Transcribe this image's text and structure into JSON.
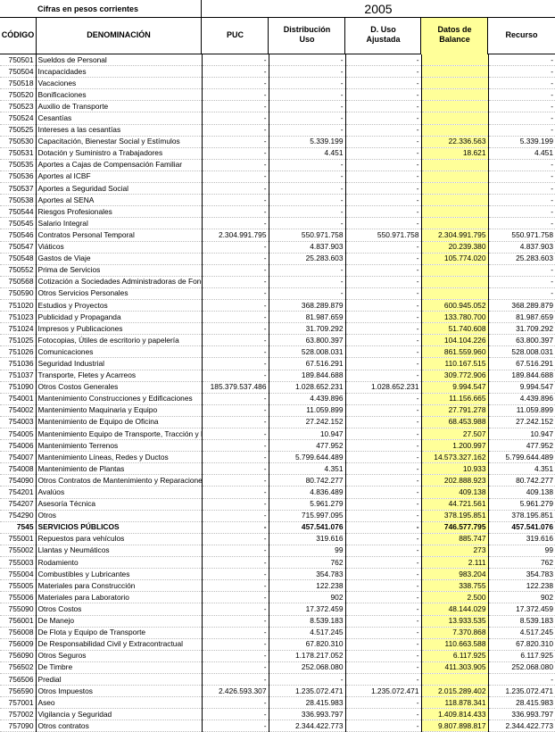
{
  "caption": "Cifras en pesos corrientes",
  "year": "2005",
  "headers": {
    "code": "CÓDIGO",
    "name": "DENOMINACIÓN",
    "puc": "PUC",
    "dist_line1": "Distribución",
    "dist_line2": "Uso",
    "duso_line1": "D. Uso",
    "duso_line2": "Ajustada",
    "datos_line1": "Datos de",
    "datos_line2": "Balance",
    "recurso": "Recurso"
  },
  "colors": {
    "highlight": "#ffff99",
    "grid": "#000000"
  },
  "rows": [
    {
      "code": "750501",
      "name": "Sueldos de Personal",
      "puc": "-",
      "dist": "-",
      "duso": "-",
      "datos": "",
      "recurso": "-"
    },
    {
      "code": "750504",
      "name": "Incapacidades",
      "puc": "-",
      "dist": "-",
      "duso": "-",
      "datos": "",
      "recurso": "-"
    },
    {
      "code": "750518",
      "name": "Vacaciones",
      "puc": "-",
      "dist": "-",
      "duso": "-",
      "datos": "",
      "recurso": "-"
    },
    {
      "code": "750520",
      "name": "Bonificaciones",
      "puc": "-",
      "dist": "-",
      "duso": "-",
      "datos": "",
      "recurso": "-"
    },
    {
      "code": "750523",
      "name": "Auxilio de Transporte",
      "puc": "-",
      "dist": "-",
      "duso": "-",
      "datos": "",
      "recurso": "-"
    },
    {
      "code": "750524",
      "name": "Cesantías",
      "puc": "-",
      "dist": "-",
      "duso": "-",
      "datos": "",
      "recurso": "-"
    },
    {
      "code": "750525",
      "name": "Intereses a las cesantías",
      "puc": "-",
      "dist": "-",
      "duso": "-",
      "datos": "",
      "recurso": "-"
    },
    {
      "code": "750530",
      "name": "Capacitación, Bienestar Social y Estímulos",
      "puc": "-",
      "dist": "5.339.199",
      "duso": "-",
      "datos": "22.336.563",
      "recurso": "5.339.199"
    },
    {
      "code": "750531",
      "name": "Dotación y Suministro a Trabajadores",
      "puc": "-",
      "dist": "4.451",
      "duso": "-",
      "datos": "18.621",
      "recurso": "4.451"
    },
    {
      "code": "750535",
      "name": "Aportes a Cajas de Compensación Familiar",
      "puc": "-",
      "dist": "-",
      "duso": "-",
      "datos": "",
      "recurso": "-"
    },
    {
      "code": "750536",
      "name": "Aportes al ICBF",
      "puc": "-",
      "dist": "-",
      "duso": "-",
      "datos": "",
      "recurso": "-"
    },
    {
      "code": "750537",
      "name": "Aportes a Seguridad Social",
      "puc": "-",
      "dist": "-",
      "duso": "-",
      "datos": "",
      "recurso": "-"
    },
    {
      "code": "750538",
      "name": "Aportes al SENA",
      "puc": "-",
      "dist": "-",
      "duso": "-",
      "datos": "",
      "recurso": "-"
    },
    {
      "code": "750544",
      "name": "Riesgos Profesionales",
      "puc": "-",
      "dist": "-",
      "duso": "-",
      "datos": "",
      "recurso": "-"
    },
    {
      "code": "750545",
      "name": "Salario Integral",
      "puc": "-",
      "dist": "-",
      "duso": "-",
      "datos": "",
      "recurso": "-"
    },
    {
      "code": "750546",
      "name": "Contratos Personal Temporal",
      "puc": "2.304.991.795",
      "dist": "550.971.758",
      "duso": "550.971.758",
      "datos": "2.304.991.795",
      "recurso": "550.971.758"
    },
    {
      "code": "750547",
      "name": "Viáticos",
      "puc": "-",
      "dist": "4.837.903",
      "duso": "-",
      "datos": "20.239.380",
      "recurso": "4.837.903"
    },
    {
      "code": "750548",
      "name": "Gastos de Viaje",
      "puc": "-",
      "dist": "25.283.603",
      "duso": "-",
      "datos": "105.774.020",
      "recurso": "25.283.603"
    },
    {
      "code": "750552",
      "name": "Prima de Servicios",
      "puc": "-",
      "dist": "-",
      "duso": "-",
      "datos": "",
      "recurso": "-"
    },
    {
      "code": "750568",
      "name": "Cotización a Sociedades Administradoras de Fondos de Pensiones",
      "puc": "-",
      "dist": "-",
      "duso": "-",
      "datos": "",
      "recurso": "-"
    },
    {
      "code": "750590",
      "name": "Otros Servicios Personales",
      "puc": "-",
      "dist": "-",
      "duso": "-",
      "datos": "",
      "recurso": "-"
    },
    {
      "code": "751020",
      "name": "Estudios y Proyectos",
      "puc": "-",
      "dist": "368.289.879",
      "duso": "-",
      "datos": "600.945.052",
      "recurso": "368.289.879"
    },
    {
      "code": "751023",
      "name": "Publicidad y Propaganda",
      "puc": "-",
      "dist": "81.987.659",
      "duso": "-",
      "datos": "133.780.700",
      "recurso": "81.987.659"
    },
    {
      "code": "751024",
      "name": "Impresos y Publicaciones",
      "puc": "-",
      "dist": "31.709.292",
      "duso": "-",
      "datos": "51.740.608",
      "recurso": "31.709.292"
    },
    {
      "code": "751025",
      "name": "Fotocopias, Útiles de escritorio y papelería",
      "puc": "-",
      "dist": "63.800.397",
      "duso": "-",
      "datos": "104.104.226",
      "recurso": "63.800.397"
    },
    {
      "code": "751026",
      "name": "Comunicaciones",
      "puc": "-",
      "dist": "528.008.031",
      "duso": "-",
      "datos": "861.559.960",
      "recurso": "528.008.031"
    },
    {
      "code": "751036",
      "name": "Seguridad Industrial",
      "puc": "-",
      "dist": "67.516.291",
      "duso": "-",
      "datos": "110.167.515",
      "recurso": "67.516.291"
    },
    {
      "code": "751037",
      "name": "Transporte, Fletes y Acarreos",
      "puc": "-",
      "dist": "189.844.688",
      "duso": "-",
      "datos": "309.772.906",
      "recurso": "189.844.688"
    },
    {
      "code": "751090",
      "name": "Otros Costos Generales",
      "puc": "185.379.537.486",
      "dist": "1.028.652.231",
      "duso": "1.028.652.231",
      "datos": "9.994.547",
      "recurso": "9.994.547"
    },
    {
      "code": "754001",
      "name": "Mantenimiento Construcciones y Edificaciones",
      "puc": "-",
      "dist": "4.439.896",
      "duso": "-",
      "datos": "11.156.665",
      "recurso": "4.439.896"
    },
    {
      "code": "754002",
      "name": "Mantenimiento Maquinaria y Equipo",
      "puc": "-",
      "dist": "11.059.899",
      "duso": "-",
      "datos": "27.791.278",
      "recurso": "11.059.899"
    },
    {
      "code": "754003",
      "name": "Mantenimiento de Equipo de Oficina",
      "puc": "-",
      "dist": "27.242.152",
      "duso": "-",
      "datos": "68.453.988",
      "recurso": "27.242.152"
    },
    {
      "code": "754005",
      "name": "Mantenimiento Equipo de Transporte, Tracción y Elevación",
      "puc": "-",
      "dist": "10.947",
      "duso": "-",
      "datos": "27.507",
      "recurso": "10.947"
    },
    {
      "code": "754006",
      "name": "Mantenimiento Terrenos",
      "puc": "-",
      "dist": "477.952",
      "duso": "-",
      "datos": "1.200.997",
      "recurso": "477.952"
    },
    {
      "code": "754007",
      "name": "Mantenimiento Líneas, Redes y Ductos",
      "puc": "-",
      "dist": "5.799.644.489",
      "duso": "-",
      "datos": "14.573.327.162",
      "recurso": "5.799.644.489"
    },
    {
      "code": "754008",
      "name": "Mantenimiento de Plantas",
      "puc": "-",
      "dist": "4.351",
      "duso": "-",
      "datos": "10.933",
      "recurso": "4.351"
    },
    {
      "code": "754090",
      "name": "Otros Contratos de Mantenimiento y Reparaciones",
      "puc": "-",
      "dist": "80.742.277",
      "duso": "-",
      "datos": "202.888.923",
      "recurso": "80.742.277"
    },
    {
      "code": "754201",
      "name": "Avalúos",
      "puc": "-",
      "dist": "4.836.489",
      "duso": "-",
      "datos": "409.138",
      "recurso": "409.138"
    },
    {
      "code": "754207",
      "name": "Asesoría Técnica",
      "puc": "-",
      "dist": "5.961.279",
      "duso": "-",
      "datos": "44.721.561",
      "recurso": "5.961.279"
    },
    {
      "code": "754290",
      "name": "Otros",
      "puc": "-",
      "dist": "715.997.095",
      "duso": "-",
      "datos": "378.195.851",
      "recurso": "378.195.851"
    },
    {
      "code": "7545",
      "name": "SERVICIOS PÚBLICOS",
      "puc": "-",
      "dist": "457.541.076",
      "duso": "-",
      "datos": "746.577.795",
      "recurso": "457.541.076",
      "bold": true
    },
    {
      "code": "755001",
      "name": "Repuestos para vehículos",
      "puc": "-",
      "dist": "319.616",
      "duso": "-",
      "datos": "885.747",
      "recurso": "319.616"
    },
    {
      "code": "755002",
      "name": "Llantas y Neumáticos",
      "puc": "-",
      "dist": "99",
      "duso": "-",
      "datos": "273",
      "recurso": "99"
    },
    {
      "code": "755003",
      "name": "Rodamiento",
      "puc": "-",
      "dist": "762",
      "duso": "-",
      "datos": "2.111",
      "recurso": "762"
    },
    {
      "code": "755004",
      "name": "Combustibles y Lubricantes",
      "puc": "-",
      "dist": "354.783",
      "duso": "-",
      "datos": "983.204",
      "recurso": "354.783"
    },
    {
      "code": "755005",
      "name": "Materiales para Construcción",
      "puc": "-",
      "dist": "122.238",
      "duso": "-",
      "datos": "338.755",
      "recurso": "122.238"
    },
    {
      "code": "755006",
      "name": "Materiales para Laboratorio",
      "puc": "-",
      "dist": "902",
      "duso": "-",
      "datos": "2.500",
      "recurso": "902"
    },
    {
      "code": "755090",
      "name": "Otros Costos",
      "puc": "-",
      "dist": "17.372.459",
      "duso": "-",
      "datos": "48.144.029",
      "recurso": "17.372.459"
    },
    {
      "code": "756001",
      "name": "De Manejo",
      "puc": "-",
      "dist": "8.539.183",
      "duso": "-",
      "datos": "13.933.535",
      "recurso": "8.539.183"
    },
    {
      "code": "756008",
      "name": "De Flota y Equipo de Transporte",
      "puc": "-",
      "dist": "4.517.245",
      "duso": "-",
      "datos": "7.370.868",
      "recurso": "4.517.245"
    },
    {
      "code": "756009",
      "name": "De Responsabilidad Civil y Extracontractual",
      "puc": "-",
      "dist": "67.820.310",
      "duso": "-",
      "datos": "110.663.588",
      "recurso": "67.820.310"
    },
    {
      "code": "756090",
      "name": "Otros Seguros",
      "puc": "-",
      "dist": "1.178.217.052",
      "duso": "-",
      "datos": "6.117.925",
      "recurso": "6.117.925"
    },
    {
      "code": "756502",
      "name": "De Timbre",
      "puc": "-",
      "dist": "252.068.080",
      "duso": "-",
      "datos": "411.303.905",
      "recurso": "252.068.080"
    },
    {
      "code": "756506",
      "name": "Predial",
      "puc": "-",
      "dist": "-",
      "duso": "-",
      "datos": "",
      "recurso": "-"
    },
    {
      "code": "756590",
      "name": "Otros Impuestos",
      "puc": "2.426.593.307",
      "dist": "1.235.072.471",
      "duso": "1.235.072.471",
      "datos": "2.015.289.402",
      "recurso": "1.235.072.471"
    },
    {
      "code": "757001",
      "name": "Aseo",
      "puc": "-",
      "dist": "28.415.983",
      "duso": "-",
      "datos": "118.878.341",
      "recurso": "28.415.983"
    },
    {
      "code": "757002",
      "name": "Vigilancia y Seguridad",
      "puc": "-",
      "dist": "336.993.797",
      "duso": "-",
      "datos": "1.409.814.433",
      "recurso": "336.993.797"
    },
    {
      "code": "757090",
      "name": "Otros contratos",
      "puc": "-",
      "dist": "2.344.422.773",
      "duso": "-",
      "datos": "9.807.898.817",
      "recurso": "2.344.422.773"
    }
  ]
}
